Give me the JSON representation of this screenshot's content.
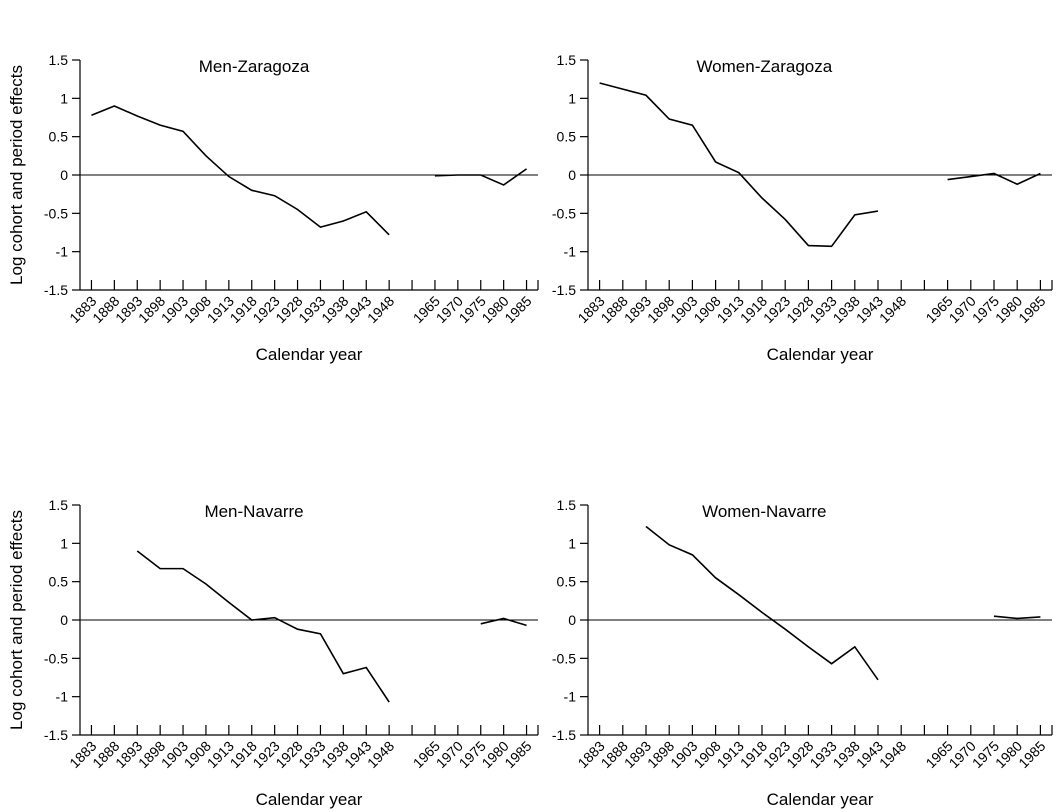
{
  "chart_data": [
    {
      "type": "line",
      "title": "Men-Zaragoza",
      "ylabel": "Log cohort and period effects",
      "xlabel": "Calendar year",
      "categories": [
        "1883",
        "1888",
        "1893",
        "1898",
        "1903",
        "1908",
        "1913",
        "1918",
        "1923",
        "1928",
        "1933",
        "1938",
        "1943",
        "1948",
        null,
        "1965",
        "1970",
        "1975",
        "1980",
        "1985"
      ],
      "color": "#000000",
      "values": [
        0.78,
        0.9,
        0.77,
        0.65,
        0.57,
        0.25,
        -0.02,
        -0.2,
        -0.27,
        -0.45,
        -0.68,
        -0.6,
        -0.48,
        -0.78,
        null,
        -0.01,
        0.0,
        0.0,
        -0.13,
        0.08
      ],
      "ylim": [
        -1.5,
        1.5
      ],
      "yticks": [
        -1.5,
        -1,
        -0.5,
        0,
        0.5,
        1,
        1.5
      ]
    },
    {
      "type": "line",
      "title": "Women-Zaragoza",
      "xlabel": "Calendar year",
      "categories": [
        "1883",
        "1888",
        "1893",
        "1898",
        "1903",
        "1908",
        "1913",
        "1918",
        "1923",
        "1928",
        "1933",
        "1938",
        "1943",
        "1948",
        null,
        "1965",
        "1970",
        "1975",
        "1980",
        "1985"
      ],
      "color": "#000000",
      "values": [
        1.2,
        1.12,
        1.04,
        0.73,
        0.65,
        0.17,
        0.03,
        -0.3,
        -0.58,
        -0.92,
        -0.93,
        -0.52,
        -0.47,
        null,
        null,
        -0.06,
        -0.02,
        0.02,
        -0.12,
        0.02
      ],
      "ylim": [
        -1.5,
        1.5
      ],
      "yticks": [
        -1.5,
        -1,
        -0.5,
        0,
        0.5,
        1,
        1.5
      ]
    },
    {
      "type": "line",
      "title": "Men-Navarre",
      "ylabel": "Log cohort and period effects",
      "xlabel": "Calendar year",
      "categories": [
        "1883",
        "1888",
        "1893",
        "1898",
        "1903",
        "1908",
        "1913",
        "1918",
        "1923",
        "1928",
        "1933",
        "1938",
        "1943",
        "1948",
        null,
        "1965",
        "1970",
        "1975",
        "1980",
        "1985"
      ],
      "color": "#000000",
      "values": [
        null,
        null,
        0.9,
        0.67,
        0.67,
        0.47,
        0.23,
        0.0,
        0.03,
        -0.12,
        -0.18,
        -0.7,
        -0.62,
        -1.07,
        null,
        null,
        null,
        -0.05,
        0.02,
        -0.07
      ],
      "ylim": [
        -1.5,
        1.5
      ],
      "yticks": [
        -1.5,
        -1,
        -0.5,
        0,
        0.5,
        1,
        1.5
      ]
    },
    {
      "type": "line",
      "title": "Women-Navarre",
      "xlabel": "Calendar year",
      "categories": [
        "1883",
        "1888",
        "1893",
        "1898",
        "1903",
        "1908",
        "1913",
        "1918",
        "1923",
        "1928",
        "1933",
        "1938",
        "1943",
        "1948",
        null,
        "1965",
        "1970",
        "1975",
        "1980",
        "1985"
      ],
      "color": "#000000",
      "values": [
        null,
        null,
        1.22,
        0.98,
        0.85,
        0.55,
        0.33,
        0.1,
        -0.12,
        -0.35,
        -0.57,
        -0.35,
        -0.78,
        null,
        null,
        null,
        null,
        0.05,
        0.02,
        0.04
      ],
      "ylim": [
        -1.5,
        1.5
      ],
      "yticks": [
        -1.5,
        -1,
        -0.5,
        0,
        0.5,
        1,
        1.5
      ]
    }
  ]
}
